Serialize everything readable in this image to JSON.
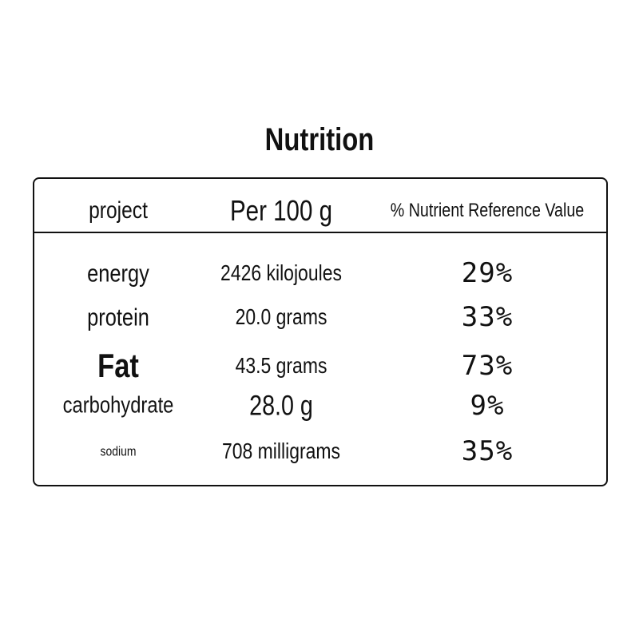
{
  "title": "Nutrition",
  "table": {
    "header": [
      "project",
      "Per 100 g",
      "% Nutrient Reference Value"
    ],
    "rows": [
      [
        "energy",
        "2426 kilojoules",
        "29%"
      ],
      [
        "protein",
        "20.0 grams",
        "33%"
      ],
      [
        "Fat",
        "43.5 grams",
        "73%"
      ],
      [
        "carbohydrate",
        "28.0 g",
        "9%"
      ],
      [
        "sodium",
        "708 milligrams",
        "35%"
      ]
    ]
  }
}
